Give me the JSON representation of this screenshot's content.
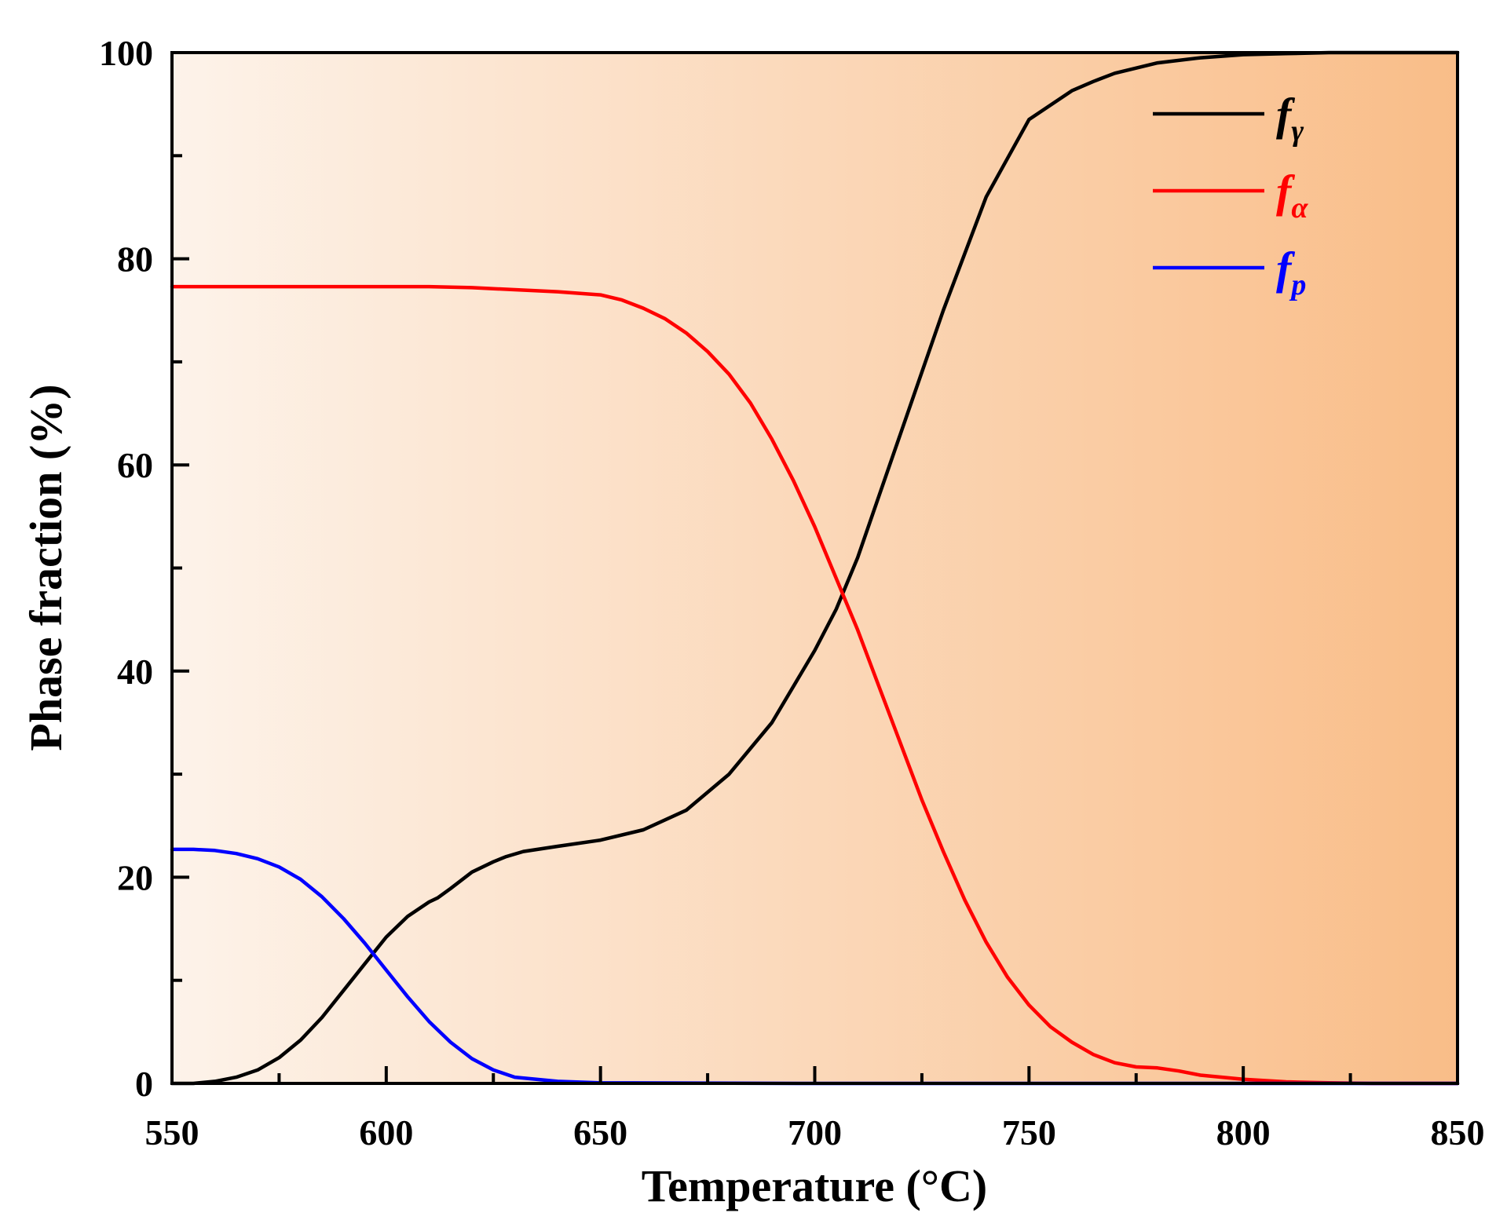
{
  "chart_data": {
    "type": "line",
    "title": "",
    "xlabel": "Temperature (°C)",
    "ylabel": "Phase fraction (%)",
    "xlim": [
      550,
      850
    ],
    "ylim": [
      0,
      100
    ],
    "xticks": [
      "550",
      "600",
      "650",
      "700",
      "750",
      "800",
      "850"
    ],
    "yticks": [
      "0",
      "20",
      "40",
      "60",
      "80",
      "100"
    ],
    "xtick_values": [
      550,
      600,
      650,
      700,
      750,
      800,
      850
    ],
    "ytick_values": [
      0,
      20,
      40,
      60,
      80,
      100
    ],
    "x_minor_step": 25,
    "y_minor_step": 10,
    "legend_position": "top-right",
    "background": {
      "style": "horizontal-gradient",
      "start_color": "#fdf3ea",
      "end_color": "#f9bd88"
    },
    "series": [
      {
        "name": "f",
        "subscript": "γ",
        "color": "#000000",
        "x": [
          550,
          555,
          560,
          565,
          570,
          575,
          580,
          585,
          590,
          595,
          600,
          605,
          610,
          612,
          615,
          620,
          625,
          628,
          632,
          640,
          650,
          660,
          670,
          680,
          690,
          700,
          705,
          710,
          715,
          720,
          725,
          730,
          740,
          750,
          760,
          765,
          770,
          775,
          780,
          790,
          800,
          810,
          820,
          850
        ],
        "y": [
          0,
          0,
          0.2,
          0.6,
          1.3,
          2.5,
          4.2,
          6.4,
          9,
          11.6,
          14.2,
          16.2,
          17.6,
          18,
          18.9,
          20.5,
          21.5,
          22,
          22.5,
          23,
          23.6,
          24.6,
          26.5,
          30,
          35,
          42,
          46,
          51,
          57,
          63,
          69,
          75,
          86,
          93.5,
          96.3,
          97.2,
          98,
          98.5,
          99,
          99.5,
          99.8,
          99.9,
          100,
          100
        ]
      },
      {
        "name": "f",
        "subscript": "α",
        "color": "#ff0000",
        "x": [
          550,
          560,
          570,
          580,
          590,
          600,
          610,
          620,
          630,
          640,
          650,
          655,
          660,
          665,
          670,
          675,
          680,
          685,
          690,
          695,
          700,
          705,
          710,
          715,
          720,
          725,
          730,
          735,
          740,
          745,
          750,
          755,
          760,
          765,
          770,
          775,
          780,
          785,
          790,
          800,
          810,
          820,
          830,
          850
        ],
        "y": [
          77.3,
          77.3,
          77.3,
          77.3,
          77.3,
          77.3,
          77.3,
          77.2,
          77,
          76.8,
          76.5,
          76,
          75.2,
          74.2,
          72.8,
          71,
          68.8,
          66,
          62.5,
          58.5,
          54,
          49,
          44,
          38.5,
          33,
          27.5,
          22.5,
          17.8,
          13.7,
          10.3,
          7.6,
          5.5,
          4,
          2.8,
          2,
          1.6,
          1.5,
          1.2,
          0.8,
          0.4,
          0.15,
          0.05,
          0,
          0
        ]
      },
      {
        "name": "f",
        "subscript": "p",
        "color": "#0000ff",
        "x": [
          550,
          555,
          560,
          565,
          570,
          575,
          580,
          585,
          590,
          595,
          600,
          605,
          610,
          615,
          620,
          625,
          630,
          640,
          650,
          700,
          750,
          800,
          850
        ],
        "y": [
          22.7,
          22.7,
          22.6,
          22.3,
          21.8,
          21,
          19.8,
          18.1,
          16,
          13.6,
          11,
          8.4,
          6,
          4,
          2.4,
          1.3,
          0.6,
          0.2,
          0.05,
          0,
          0,
          0,
          0
        ]
      }
    ]
  }
}
